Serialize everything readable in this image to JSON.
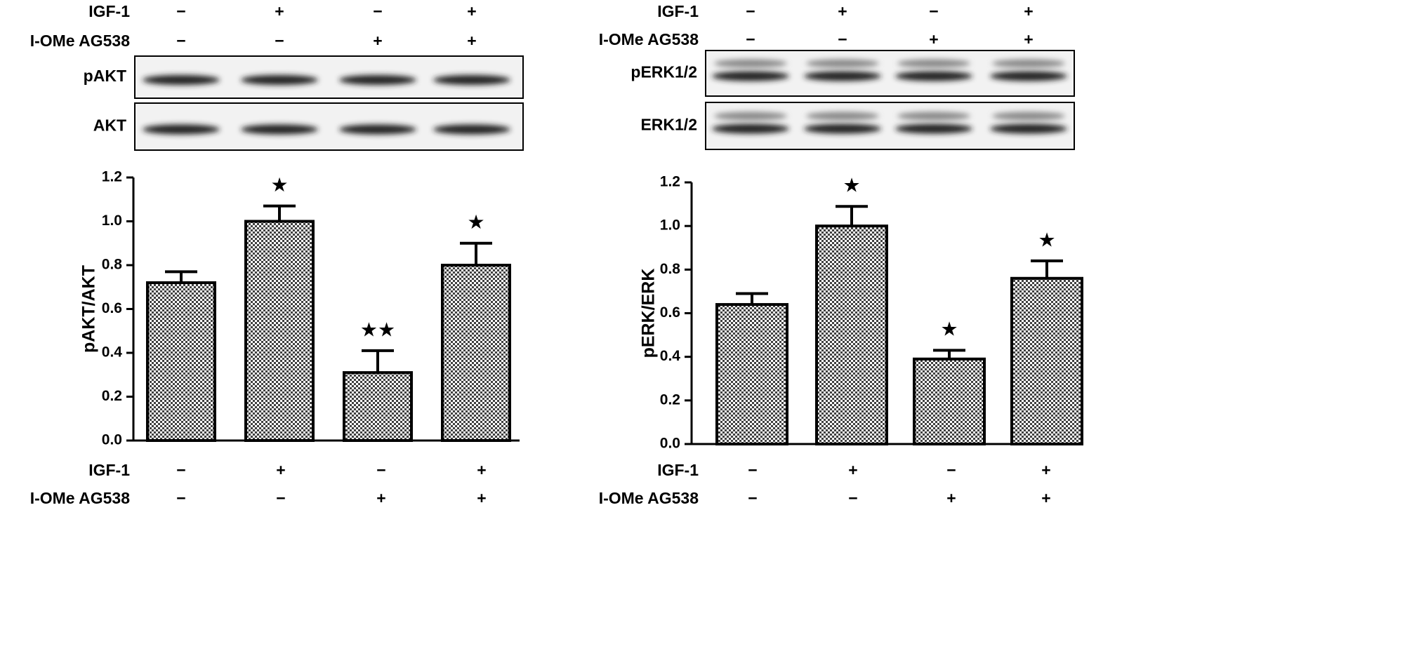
{
  "chart_data": [
    {
      "type": "bar",
      "ylabel": "pAKT/AKT",
      "color": "#000000",
      "treatments": [
        {
          "name": "IGF-1",
          "signs": [
            "−",
            "+",
            "−",
            "+"
          ]
        },
        {
          "name": "I-OMe AG538",
          "signs": [
            "−",
            "−",
            "+",
            "+"
          ]
        }
      ],
      "blots": [
        "pAKT",
        "AKT"
      ],
      "values": [
        0.72,
        1.0,
        0.31,
        0.8
      ],
      "errors": [
        0.05,
        0.07,
        0.1,
        0.1
      ],
      "annotations": [
        null,
        "★",
        "★★",
        "★"
      ],
      "ylim": [
        0,
        1.2
      ],
      "yticks": [
        {
          "value": 0,
          "label": "0.0"
        },
        {
          "value": 0.2,
          "label": "0.2"
        },
        {
          "value": 0.4,
          "label": "0.4"
        },
        {
          "value": 0.6,
          "label": "0.6"
        },
        {
          "value": 0.8,
          "label": "0.8"
        },
        {
          "value": 1,
          "label": "1.0"
        },
        {
          "value": 1.2,
          "label": "1.2"
        }
      ]
    },
    {
      "type": "bar",
      "ylabel": "pERK/ERK",
      "color": "#000000",
      "treatments": [
        {
          "name": "IGF-1",
          "signs": [
            "−",
            "+",
            "−",
            "+"
          ]
        },
        {
          "name": "I-OMe AG538",
          "signs": [
            "−",
            "−",
            "+",
            "+"
          ]
        }
      ],
      "blots": [
        "pERK1/2",
        "ERK1/2"
      ],
      "values": [
        0.64,
        1.0,
        0.39,
        0.76
      ],
      "errors": [
        0.05,
        0.09,
        0.04,
        0.08
      ],
      "annotations": [
        null,
        "★",
        "★",
        "★"
      ],
      "ylim": [
        0,
        1.2
      ],
      "yticks": [
        {
          "value": 0,
          "label": "0.0"
        },
        {
          "value": 0.2,
          "label": "0.2"
        },
        {
          "value": 0.4,
          "label": "0.4"
        },
        {
          "value": 0.6,
          "label": "0.6"
        },
        {
          "value": 0.8,
          "label": "0.8"
        },
        {
          "value": 1,
          "label": "1.0"
        },
        {
          "value": 1.2,
          "label": "1.2"
        }
      ]
    }
  ]
}
